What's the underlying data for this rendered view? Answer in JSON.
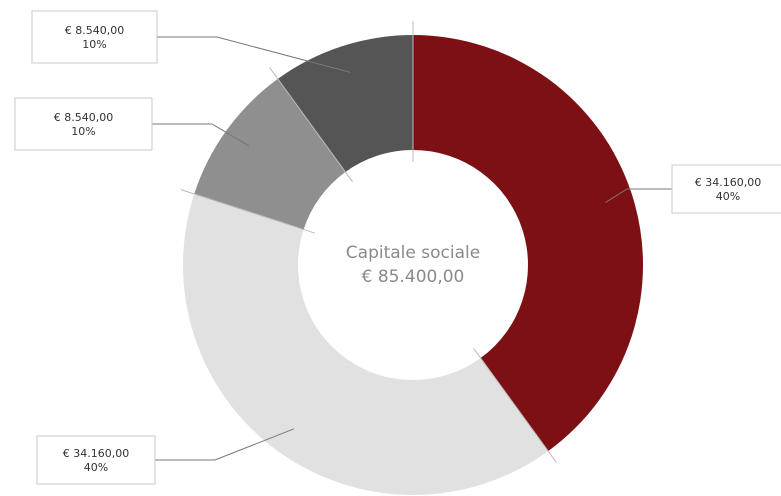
{
  "chart_data": {
    "type": "pie",
    "donut": true,
    "center": {
      "title": "Capitale sociale",
      "value": "€ 85.400,00"
    },
    "slices": [
      {
        "value": 34160.0,
        "percent": 40,
        "value_label": "€ 34.160,00",
        "percent_label": "40%",
        "color": "#7d1014"
      },
      {
        "value": 34160.0,
        "percent": 40,
        "value_label": "€ 34.160,00",
        "percent_label": "40%",
        "color": "#e1e1e1"
      },
      {
        "value": 8540.0,
        "percent": 10,
        "value_label": "€ 8.540,00",
        "percent_label": "10%",
        "color": "#8f8f8f"
      },
      {
        "value": 8540.0,
        "percent": 10,
        "value_label": "€ 8.540,00",
        "percent_label": "10%",
        "color": "#555555"
      }
    ],
    "legend": "none"
  }
}
